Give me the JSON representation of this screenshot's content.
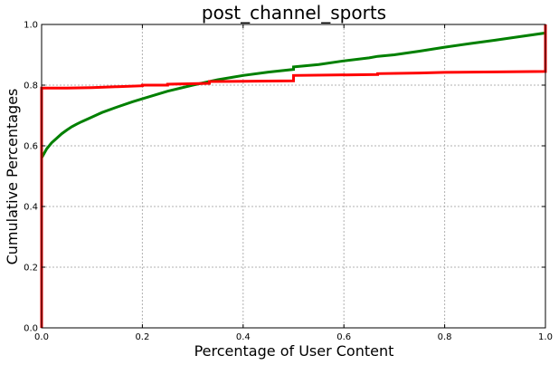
{
  "chart_data": {
    "type": "line",
    "title": "post_channel_sports",
    "xlabel": "Percentage of User Content",
    "ylabel": "Cumulative Percentages",
    "xlim": [
      0,
      1
    ],
    "ylim": [
      0,
      1
    ],
    "xticks": [
      "0.0",
      "0.2",
      "0.4",
      "0.6",
      "0.8",
      "1.0"
    ],
    "yticks": [
      "0.0",
      "0.2",
      "0.4",
      "0.6",
      "0.8",
      "1.0"
    ],
    "grid": true,
    "series": [
      {
        "color": "#008000",
        "points": [
          [
            0.0,
            0.0
          ],
          [
            0.0,
            0.56
          ],
          [
            0.005,
            0.575
          ],
          [
            0.01,
            0.59
          ],
          [
            0.02,
            0.61
          ],
          [
            0.03,
            0.625
          ],
          [
            0.04,
            0.64
          ],
          [
            0.05,
            0.652
          ],
          [
            0.06,
            0.663
          ],
          [
            0.07,
            0.672
          ],
          [
            0.08,
            0.68
          ],
          [
            0.1,
            0.695
          ],
          [
            0.12,
            0.71
          ],
          [
            0.15,
            0.728
          ],
          [
            0.18,
            0.745
          ],
          [
            0.2,
            0.755
          ],
          [
            0.25,
            0.78
          ],
          [
            0.3,
            0.8
          ],
          [
            0.333,
            0.812
          ],
          [
            0.35,
            0.818
          ],
          [
            0.4,
            0.832
          ],
          [
            0.45,
            0.843
          ],
          [
            0.5,
            0.852
          ],
          [
            0.5,
            0.86
          ],
          [
            0.55,
            0.868
          ],
          [
            0.6,
            0.88
          ],
          [
            0.65,
            0.89
          ],
          [
            0.667,
            0.895
          ],
          [
            0.7,
            0.9
          ],
          [
            0.75,
            0.912
          ],
          [
            0.8,
            0.925
          ],
          [
            0.85,
            0.937
          ],
          [
            0.9,
            0.948
          ],
          [
            0.95,
            0.96
          ],
          [
            1.0,
            0.972
          ],
          [
            1.0,
            0.975
          ]
        ]
      },
      {
        "color": "#ff0000",
        "points": [
          [
            0.0,
            0.0
          ],
          [
            0.0,
            0.79
          ],
          [
            0.05,
            0.79
          ],
          [
            0.1,
            0.792
          ],
          [
            0.15,
            0.795
          ],
          [
            0.2,
            0.798
          ],
          [
            0.2,
            0.8
          ],
          [
            0.25,
            0.8
          ],
          [
            0.25,
            0.803
          ],
          [
            0.333,
            0.806
          ],
          [
            0.333,
            0.812
          ],
          [
            0.5,
            0.814
          ],
          [
            0.5,
            0.832
          ],
          [
            0.667,
            0.835
          ],
          [
            0.667,
            0.838
          ],
          [
            0.75,
            0.84
          ],
          [
            0.8,
            0.842
          ],
          [
            1.0,
            0.845
          ],
          [
            1.0,
            1.0
          ]
        ]
      }
    ]
  }
}
